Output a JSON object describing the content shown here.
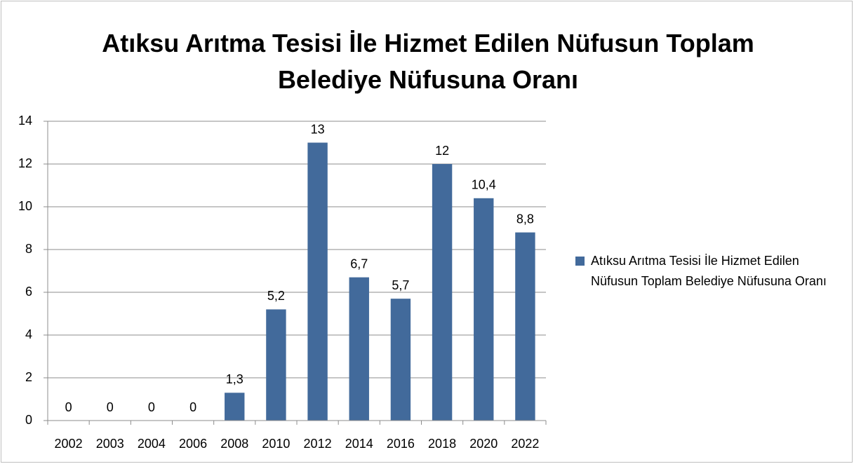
{
  "chart_data": {
    "type": "bar",
    "title": "Atıksu Arıtma Tesisi İle Hizmet Edilen Nüfusun Toplam Belediye Nüfusuna Oranı",
    "categories": [
      "2002",
      "2003",
      "2004",
      "2006",
      "2008",
      "2010",
      "2012",
      "2014",
      "2016",
      "2018",
      "2020",
      "2022"
    ],
    "series": [
      {
        "name": "Atıksu Arıtma Tesisi İle Hizmet Edilen Nüfusun Toplam Belediye Nüfusuna Oranı",
        "color": "#426a9b",
        "values": [
          0,
          0,
          0,
          0,
          1.3,
          5.2,
          13,
          6.7,
          5.7,
          12,
          10.4,
          8.8
        ],
        "value_labels": [
          "0",
          "0",
          "0",
          "0",
          "1,3",
          "5,2",
          "13",
          "6,7",
          "5,7",
          "12",
          "10,4",
          "8,8"
        ]
      }
    ],
    "ylim": [
      0,
      14
    ],
    "yticks": [
      0,
      2,
      4,
      6,
      8,
      10,
      12,
      14
    ],
    "grid": true,
    "legend": "right"
  }
}
